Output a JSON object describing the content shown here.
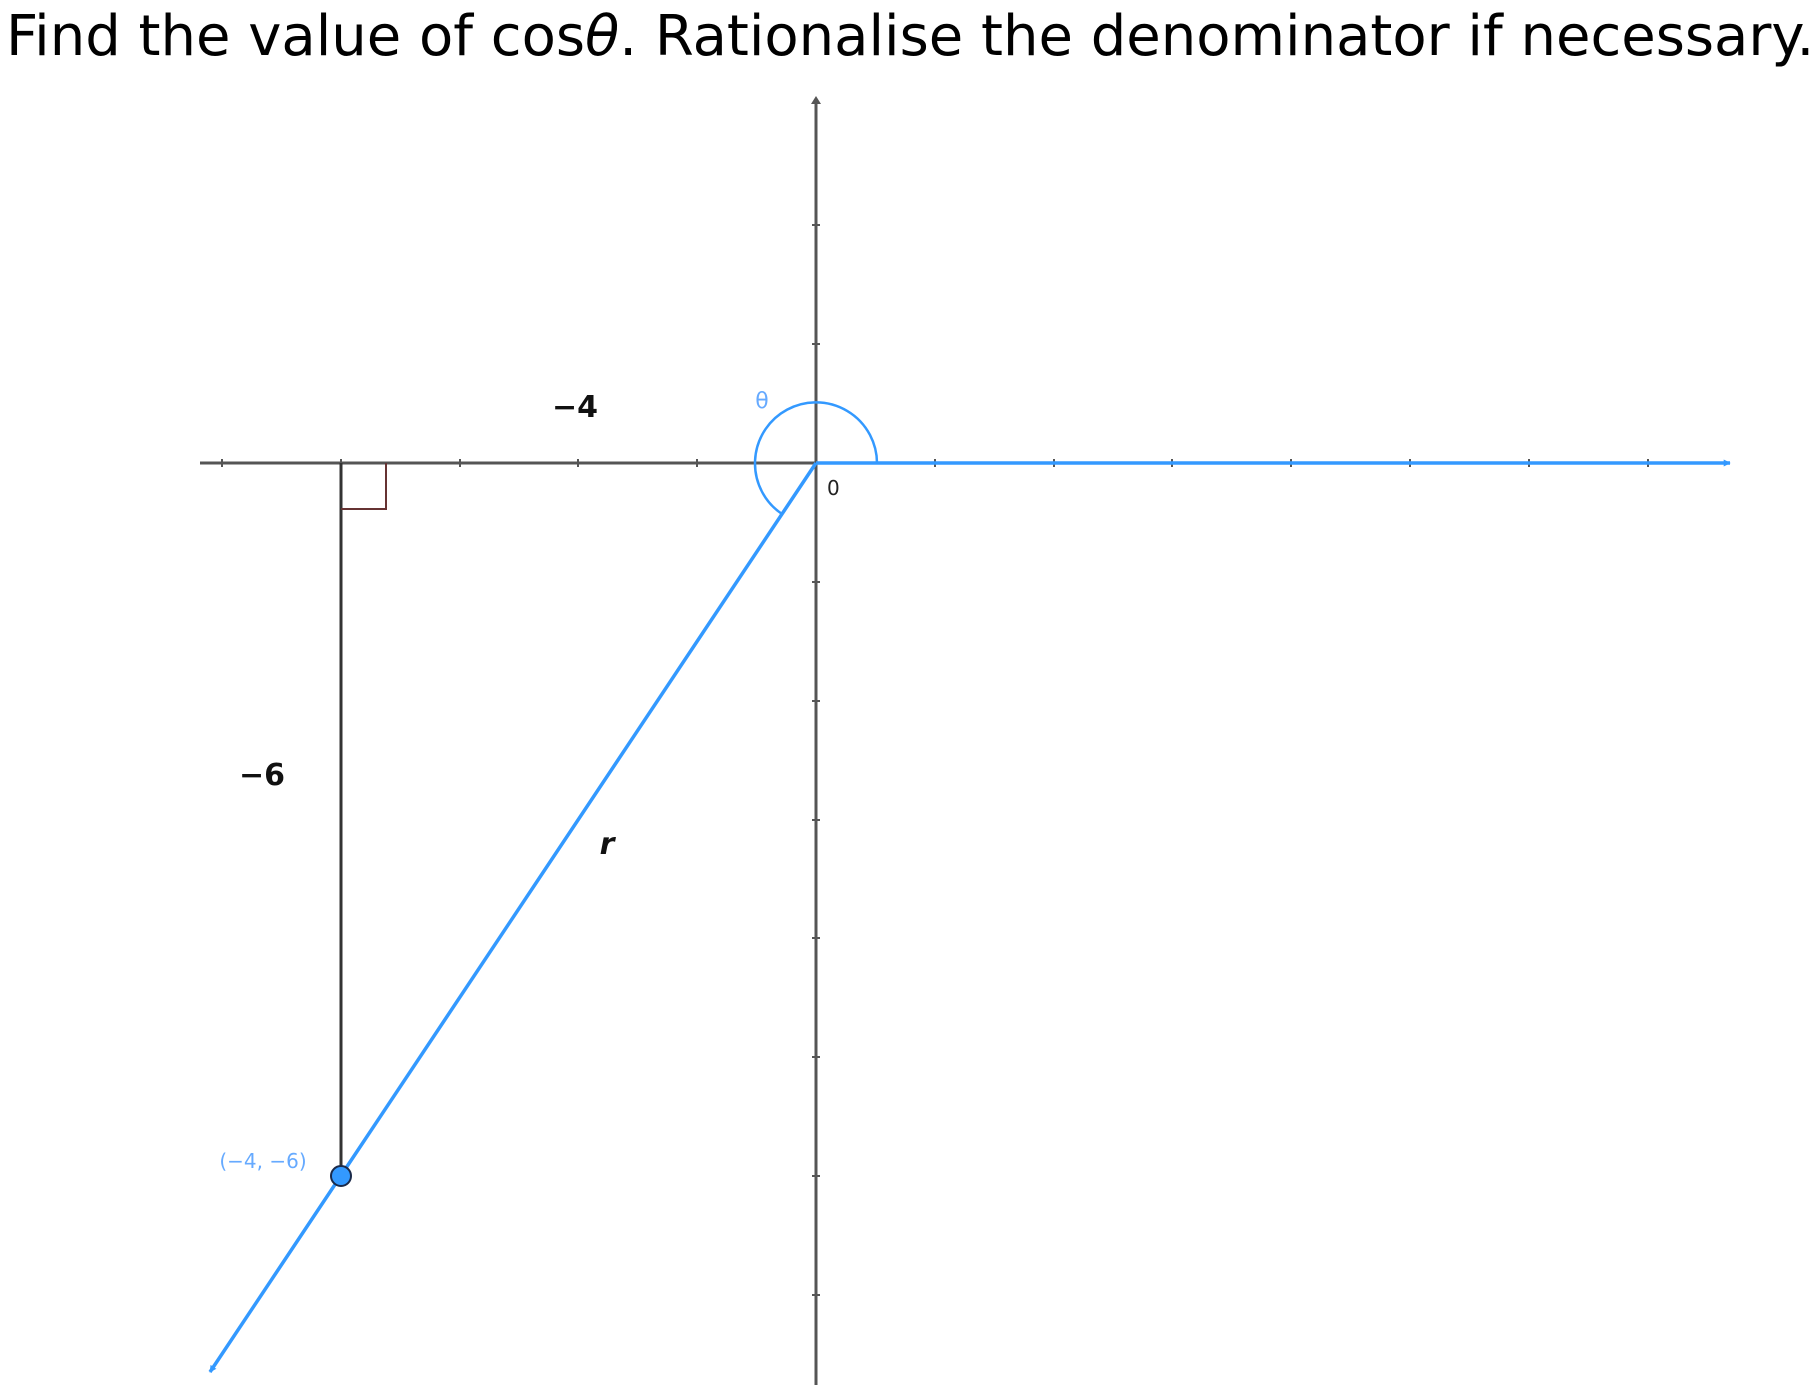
{
  "question": {
    "prefix": "Find the value of cos",
    "symbol": "θ",
    "suffix": ". Rationalise the denominator if necessary."
  },
  "diagram": {
    "point_label": "(−4, −6)",
    "horizontal_label": "−4",
    "vertical_label": "−6",
    "hypotenuse_label": "r",
    "angle_label": "θ",
    "origin_label": "0",
    "point": {
      "x": -4,
      "y": -6
    },
    "colors": {
      "terminal": "#3399ff",
      "axis": "#555555",
      "triangle": "#333333",
      "right_angle": "#663333",
      "label_blue": "#66aaff"
    }
  }
}
